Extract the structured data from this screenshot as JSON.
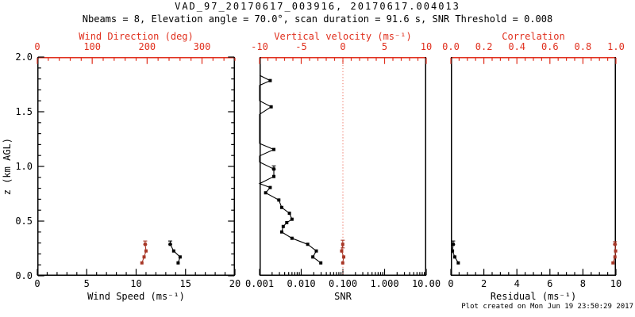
{
  "header": {
    "title": "VAD_97_20170617_003916, 20170617.004013",
    "subtitle": "Nbeams = 8, Elevation angle = 70.0°, scan duration = 91.6 s, SNR Threshold = 0.008"
  },
  "footer": {
    "created": "Plot created on Mon Jun 19 23:50:29 2017"
  },
  "colors": {
    "axis_red": "#e0301e",
    "series_red": "#a83828",
    "zero_line_red": "#f08273",
    "foreground": "#000000",
    "background": "#ffffff"
  },
  "chart_data": {
    "type": "line",
    "description": "VAD wind retrieval profiles versus height; three panels share vertical axis z (km AGL) from 0 to 2",
    "y_axis": {
      "label": "z (km AGL)",
      "min": 0,
      "max": 2,
      "major_step": 0.5,
      "minor_step": 0.1,
      "tick_values": [
        0,
        0.5,
        1,
        1.5,
        2
      ],
      "tick_labels": [
        "0.0",
        "0.5",
        "1.0",
        "1.5",
        "2.0"
      ]
    },
    "panels": [
      {
        "name": "wind",
        "bottom_axis": {
          "label": "Wind Speed (ms⁻¹)",
          "scale": "linear",
          "min": 0,
          "max": 20,
          "major_step": 5,
          "minor_step": 1,
          "tick_values": [
            0,
            5,
            10,
            15,
            20
          ],
          "tick_labels": [
            "0",
            "5",
            "10",
            "15",
            "20"
          ]
        },
        "top_axis": {
          "label": "Wind Direction (deg)",
          "scale": "linear",
          "min": 0,
          "max": 360,
          "major_step": 100,
          "minor_step": 20,
          "tick_values": [
            0,
            100,
            200,
            300
          ],
          "tick_labels": [
            "0",
            "100",
            "200",
            "300"
          ]
        },
        "series": [
          {
            "name": "wind-speed",
            "axis": "bottom",
            "color": "black",
            "points": [
              [
                0.118,
                14.25,
                1
              ],
              [
                0.172,
                14.45,
                1
              ],
              [
                0.227,
                13.8,
                1
              ],
              [
                0.288,
                13.45,
                1
              ]
            ],
            "caps": [
              [
                0.288,
                0.318,
                13.45
              ]
            ]
          },
          {
            "name": "wind-direction",
            "axis": "top",
            "color": "red",
            "points": [
              [
                0.118,
                190.5,
                1
              ],
              [
                0.172,
                194.5,
                1
              ],
              [
                0.227,
                198,
                1
              ],
              [
                0.288,
                196.5,
                1
              ]
            ],
            "caps": [
              [
                0.288,
                0.318,
                196.5
              ]
            ]
          }
        ]
      },
      {
        "name": "snr",
        "bottom_axis": {
          "label": "SNR",
          "scale": "log",
          "min": 0.001,
          "max": 10,
          "tick_values": [
            0.001,
            0.01,
            0.1,
            1,
            10
          ],
          "tick_labels": [
            "0.001",
            "0.010",
            "0.100",
            "1.000",
            "10.00"
          ]
        },
        "top_axis": {
          "label": "Vertical velocity (ms⁻¹)",
          "scale": "linear",
          "min": -10,
          "max": 10,
          "major_step": 5,
          "minor_step": 1,
          "tick_values": [
            -10,
            -5,
            0,
            5,
            10
          ],
          "tick_labels": [
            "-10",
            "-5",
            "0",
            "5",
            "10"
          ]
        },
        "zero_line": {
          "axis": "top",
          "value": 0
        },
        "series": [
          {
            "name": "snr-profile",
            "axis": "bottom",
            "color": "black",
            "points": [
              [
                0.118,
                0.0295,
                1
              ],
              [
                0.172,
                0.019,
                1
              ],
              [
                0.227,
                0.023,
                1
              ],
              [
                0.288,
                0.0143,
                1
              ],
              [
                0.343,
                0.006,
                1
              ],
              [
                0.401,
                0.0034,
                1
              ],
              [
                0.451,
                0.0037,
                1
              ],
              [
                0.486,
                0.0045,
                1
              ],
              [
                0.517,
                0.006,
                1
              ],
              [
                0.572,
                0.0052,
                1
              ],
              [
                0.625,
                0.0034,
                1
              ],
              [
                0.693,
                0.0029,
                1
              ],
              [
                0.759,
                0.0014,
                1
              ],
              [
                0.807,
                0.0018,
                1
              ],
              [
                0.843,
                0.001,
                0
              ],
              [
                0.908,
                0.0022,
                1
              ],
              [
                0.976,
                0.0022,
                1
              ],
              [
                1.04,
                0.001,
                0
              ],
              [
                1.096,
                0.001,
                0
              ],
              [
                1.155,
                0.0022,
                1
              ],
              [
                1.21,
                0.001,
                0
              ],
              [
                1.476,
                0.001,
                0
              ],
              [
                1.545,
                0.0019,
                1
              ],
              [
                1.6,
                0.001,
                0
              ],
              [
                1.741,
                0.001,
                0
              ],
              [
                1.785,
                0.0018,
                1
              ],
              [
                1.833,
                0.001,
                0
              ]
            ],
            "caps": [
              [
                0.976,
                1.005,
                0.0022
              ]
            ]
          },
          {
            "name": "vertical-velocity",
            "axis": "top",
            "color": "red",
            "points": [
              [
                0.118,
                -0.02,
                1
              ],
              [
                0.172,
                0.1,
                1
              ],
              [
                0.227,
                -0.15,
                1
              ],
              [
                0.288,
                -0.02,
                1
              ]
            ],
            "caps": [
              [
                0.255,
                0.325,
                -0.02
              ]
            ]
          }
        ]
      },
      {
        "name": "residual",
        "bottom_axis": {
          "label": "Residual (ms⁻¹)",
          "scale": "linear",
          "min": 0,
          "max": 10,
          "major_step": 2,
          "minor_step": 0.5,
          "tick_values": [
            0,
            2,
            4,
            6,
            8,
            10
          ],
          "tick_labels": [
            "0",
            "2",
            "4",
            "6",
            "8",
            "10"
          ]
        },
        "top_axis": {
          "label": "Correlation",
          "scale": "linear",
          "min": 0,
          "max": 1,
          "major_step": 0.2,
          "minor_step": 0.05,
          "tick_values": [
            0,
            0.2,
            0.4,
            0.6,
            0.8,
            1
          ],
          "tick_labels": [
            "0.0",
            "0.2",
            "0.4",
            "0.6",
            "0.8",
            "1.0"
          ]
        },
        "series": [
          {
            "name": "residual",
            "axis": "bottom",
            "color": "black",
            "points": [
              [
                0.118,
                0.45,
                1
              ],
              [
                0.172,
                0.24,
                1
              ],
              [
                0.227,
                0.1,
                1
              ],
              [
                0.288,
                0.14,
                1
              ]
            ],
            "caps": [
              [
                0.288,
                0.318,
                0.14
              ]
            ]
          },
          {
            "name": "correlation",
            "axis": "top",
            "color": "red",
            "points": [
              [
                0.118,
                0.982,
                1
              ],
              [
                0.172,
                0.994,
                1
              ],
              [
                0.227,
                0.998,
                1
              ],
              [
                0.288,
                0.994,
                1
              ]
            ],
            "caps": [
              [
                0.288,
                0.312,
                0.994
              ]
            ]
          }
        ]
      }
    ]
  }
}
